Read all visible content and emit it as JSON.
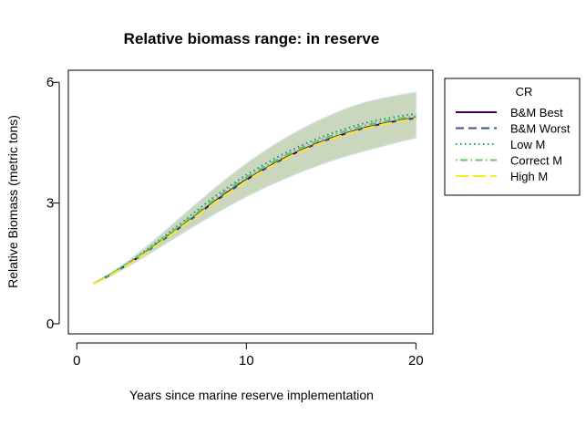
{
  "chart_data": {
    "type": "line",
    "title": "Relative biomass range: in reserve",
    "xlabel": "Years since marine reserve implementation",
    "ylabel": "Relative Biomass (metric tons)",
    "xlim": [
      -0.5,
      21
    ],
    "ylim": [
      -0.25,
      6.3
    ],
    "xticks": [
      0,
      10,
      20
    ],
    "yticks": [
      0,
      3,
      6
    ],
    "grid": false,
    "legend": {
      "title": "CR",
      "placement": "right",
      "entries": [
        "B&M Best",
        "B&M Worst",
        "Low M",
        "Correct M",
        "High M"
      ]
    },
    "x": [
      1,
      2,
      3,
      4,
      5,
      6,
      7,
      8,
      9,
      10,
      11,
      12,
      13,
      14,
      15,
      16,
      17,
      18,
      19,
      20
    ],
    "range_band": {
      "lower": [
        1.0,
        1.19,
        1.42,
        1.67,
        1.93,
        2.19,
        2.45,
        2.7,
        2.94,
        3.16,
        3.37,
        3.56,
        3.74,
        3.9,
        4.05,
        4.18,
        4.3,
        4.41,
        4.52,
        4.62
      ],
      "upper": [
        1.0,
        1.26,
        1.55,
        1.88,
        2.23,
        2.6,
        2.96,
        3.32,
        3.66,
        3.98,
        4.27,
        4.54,
        4.78,
        5.0,
        5.19,
        5.36,
        5.5,
        5.6,
        5.68,
        5.75
      ],
      "color": "#b9c9a6"
    },
    "series": [
      {
        "name": "B&M Best",
        "color": "#440154",
        "dash": "solid",
        "values": [
          1.0,
          1.22,
          1.48,
          1.76,
          2.06,
          2.37,
          2.68,
          3.0,
          3.3,
          3.58,
          3.83,
          4.06,
          4.27,
          4.45,
          4.61,
          4.75,
          4.87,
          4.97,
          5.05,
          5.11
        ]
      },
      {
        "name": "B&M Worst",
        "color": "#3b528b",
        "dash": "dashed",
        "values": [
          1.0,
          1.22,
          1.48,
          1.76,
          2.06,
          2.37,
          2.68,
          2.99,
          3.29,
          3.57,
          3.83,
          4.06,
          4.26,
          4.45,
          4.61,
          4.75,
          4.87,
          4.97,
          5.05,
          5.12
        ]
      },
      {
        "name": "Low M",
        "color": "#21908c",
        "dash": "dotted",
        "values": [
          1.0,
          1.23,
          1.5,
          1.8,
          2.12,
          2.45,
          2.79,
          3.12,
          3.42,
          3.7,
          3.95,
          4.18,
          4.39,
          4.57,
          4.73,
          4.87,
          4.99,
          5.08,
          5.16,
          5.22
        ]
      },
      {
        "name": "Correct M",
        "color": "#5dc863",
        "dash": "dotdash",
        "values": [
          1.0,
          1.23,
          1.49,
          1.78,
          2.09,
          2.41,
          2.73,
          3.05,
          3.36,
          3.64,
          3.89,
          4.12,
          4.33,
          4.51,
          4.67,
          4.81,
          4.93,
          5.02,
          5.1,
          5.16
        ]
      },
      {
        "name": "High M",
        "color": "#fde725",
        "dash": "longdash",
        "values": [
          1.0,
          1.21,
          1.46,
          1.74,
          2.04,
          2.35,
          2.66,
          2.97,
          3.27,
          3.55,
          3.81,
          4.04,
          4.25,
          4.43,
          4.59,
          4.73,
          4.85,
          4.95,
          5.03,
          5.1
        ]
      }
    ]
  }
}
